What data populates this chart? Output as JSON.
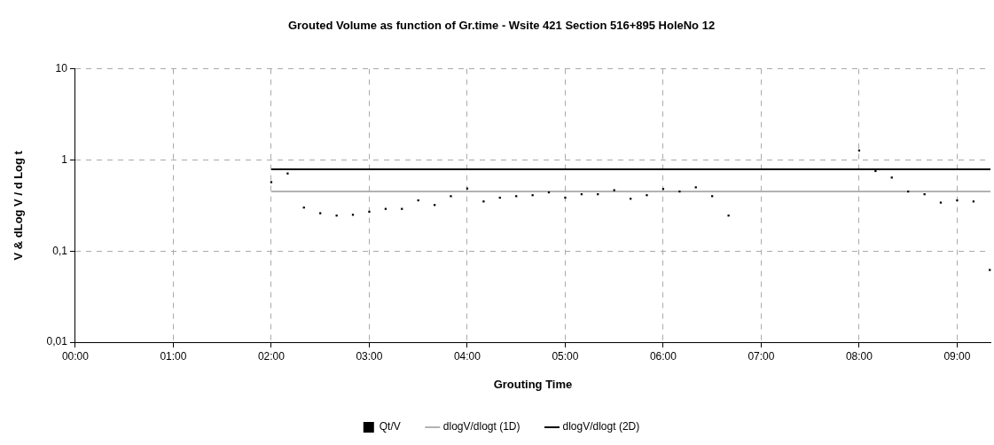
{
  "chart_data": {
    "type": "scatter",
    "title": "Grouted Volume as function of Gr.time - Wsite 421 Section 516+895 HoleNo 12",
    "xlabel": "Grouting Time",
    "ylabel": "V & dLog V / d Log t",
    "log": "y",
    "grid": true,
    "legend": "bottom",
    "xlim": [
      0,
      9.34
    ],
    "xticks": [
      {
        "value": 0,
        "label": "00:00"
      },
      {
        "value": 1,
        "label": "01:00"
      },
      {
        "value": 2,
        "label": "02:00"
      },
      {
        "value": 3,
        "label": "03:00"
      },
      {
        "value": 4,
        "label": "04:00"
      },
      {
        "value": 5,
        "label": "05:00"
      },
      {
        "value": 6,
        "label": "06:00"
      },
      {
        "value": 7,
        "label": "07:00"
      },
      {
        "value": 8,
        "label": "08:00"
      },
      {
        "value": 9,
        "label": "09:00"
      }
    ],
    "ylim": [
      0.01,
      10
    ],
    "yticks": [
      {
        "value": 0.01,
        "label": "0,01"
      },
      {
        "value": 0.1,
        "label": "0,1"
      },
      1,
      10
    ],
    "series": [
      {
        "name": "Qt/V",
        "type": "scatter",
        "marker": "square",
        "color": "#000000",
        "x": [
          2,
          2.167,
          2.333,
          2.5,
          2.667,
          2.833,
          3,
          3.167,
          3.333,
          3.5,
          3.667,
          3.833,
          4,
          4.167,
          4.333,
          4.5,
          4.667,
          4.833,
          5,
          5.167,
          5.333,
          5.5,
          5.667,
          5.833,
          6,
          6.167,
          6.333,
          6.5,
          6.667,
          8,
          8.167,
          8.333,
          8.5,
          8.667,
          8.833,
          9,
          9.167,
          9.333
        ],
        "values": [
          0.57,
          0.71,
          0.3,
          0.26,
          0.245,
          0.25,
          0.27,
          0.29,
          0.29,
          0.36,
          0.32,
          0.4,
          0.485,
          0.35,
          0.385,
          0.4,
          0.41,
          0.44,
          0.385,
          0.42,
          0.42,
          0.465,
          0.375,
          0.41,
          0.48,
          0.45,
          0.5,
          0.4,
          0.245,
          1.27,
          0.755,
          0.64,
          0.45,
          0.42,
          0.34,
          0.36,
          0.35,
          0.062
        ]
      },
      {
        "name": "dlogV/dlogt (1D)",
        "type": "line",
        "marker": "none",
        "color": "#999999",
        "x": [
          2,
          9.34
        ],
        "values": [
          0.45,
          0.45
        ]
      },
      {
        "name": "dlogV/dlogt (2D)",
        "type": "line",
        "marker": "none",
        "color": "#000000",
        "x": [
          2,
          9.34
        ],
        "values": [
          0.79,
          0.79
        ]
      }
    ]
  }
}
